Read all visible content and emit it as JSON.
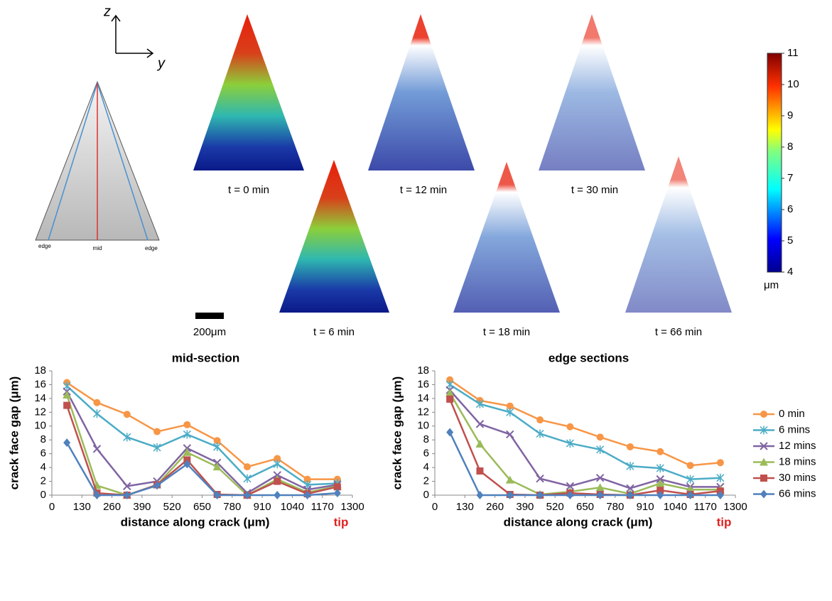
{
  "figure": {
    "axes": {
      "z": "z",
      "y": "y"
    },
    "diagram": {
      "edge_left": "edge",
      "mid": "mid",
      "edge_right": "edge"
    },
    "panels": [
      "t = 0 min",
      "t = 12 min",
      "t = 30 min",
      "t = 6 min",
      "t = 18 min",
      "t = 66 min"
    ],
    "scale_bar": "200μm",
    "colorbar": {
      "lim": [
        4,
        11
      ],
      "ticks": [
        4,
        5,
        6,
        7,
        8,
        9,
        10,
        11
      ],
      "unit": "μm"
    }
  },
  "chart_data": [
    {
      "type": "line",
      "title": "mid-section",
      "x_label": "distance along crack (μm)",
      "y_label": "crack face gap (μm)",
      "annotation": "tip",
      "x": [
        65,
        195,
        325,
        455,
        585,
        715,
        845,
        975,
        1105,
        1235
      ],
      "xlim": [
        0,
        1300
      ],
      "xticks": [
        0,
        130,
        260,
        390,
        520,
        650,
        780,
        910,
        1040,
        1170,
        1300
      ],
      "ylim": [
        0,
        18
      ],
      "yticks": [
        0,
        2,
        4,
        6,
        8,
        10,
        12,
        14,
        16,
        18
      ],
      "series": [
        {
          "name": "0 min",
          "color": "#f79646",
          "marker": "circle",
          "values": [
            16.3,
            13.4,
            11.7,
            9.2,
            10.2,
            7.9,
            4.1,
            5.3,
            2.3,
            2.3
          ]
        },
        {
          "name": "6 mins",
          "color": "#4bacc6",
          "marker": "star",
          "values": [
            15.8,
            11.8,
            8.4,
            6.9,
            8.8,
            7.0,
            2.4,
            4.5,
            1.5,
            1.7
          ]
        },
        {
          "name": "12 mins",
          "color": "#8064a2",
          "marker": "x",
          "values": [
            15.0,
            6.7,
            1.3,
            2.0,
            6.8,
            4.7,
            0.3,
            2.9,
            0.8,
            1.5
          ]
        },
        {
          "name": "18 mins",
          "color": "#9bbb59",
          "marker": "triangle",
          "values": [
            14.5,
            1.4,
            0,
            1.5,
            6.2,
            4.1,
            0,
            2.3,
            0.4,
            1.3
          ]
        },
        {
          "name": "30 mins",
          "color": "#c0504d",
          "marker": "square",
          "values": [
            13.0,
            0.3,
            0,
            1.5,
            5.1,
            0.1,
            0,
            2.0,
            0.2,
            1.2
          ]
        },
        {
          "name": "66 mins",
          "color": "#4f81bd",
          "marker": "diamond",
          "values": [
            7.6,
            0,
            0,
            1.4,
            4.5,
            0,
            0,
            0,
            0,
            0.3
          ]
        }
      ]
    },
    {
      "type": "line",
      "title": "edge sections",
      "x_label": "distance along crack (μm)",
      "y_label": "crack face gap (μm)",
      "annotation": "tip",
      "x": [
        65,
        195,
        325,
        455,
        585,
        715,
        845,
        975,
        1105,
        1235
      ],
      "xlim": [
        0,
        1300
      ],
      "xticks": [
        0,
        130,
        260,
        390,
        520,
        650,
        780,
        910,
        1040,
        1170,
        1300
      ],
      "ylim": [
        0,
        18
      ],
      "yticks": [
        0,
        2,
        4,
        6,
        8,
        10,
        12,
        14,
        16,
        18
      ],
      "legend": "right",
      "series": [
        {
          "name": "0 min",
          "color": "#f79646",
          "marker": "circle",
          "values": [
            16.7,
            13.7,
            12.9,
            10.9,
            9.9,
            8.4,
            7.0,
            6.3,
            4.3,
            4.7
          ]
        },
        {
          "name": "6 mins",
          "color": "#4bacc6",
          "marker": "star",
          "values": [
            16.0,
            13.2,
            12.0,
            8.9,
            7.5,
            6.6,
            4.2,
            3.9,
            2.3,
            2.5
          ]
        },
        {
          "name": "12 mins",
          "color": "#8064a2",
          "marker": "x",
          "values": [
            15.2,
            10.3,
            8.8,
            2.4,
            1.3,
            2.5,
            1.0,
            2.3,
            1.2,
            1.2
          ]
        },
        {
          "name": "18 mins",
          "color": "#9bbb59",
          "marker": "triangle",
          "values": [
            14.8,
            7.4,
            2.2,
            0.1,
            0.5,
            1.1,
            0.2,
            1.7,
            0.8,
            0.8
          ]
        },
        {
          "name": "30 mins",
          "color": "#c0504d",
          "marker": "square",
          "values": [
            13.9,
            3.5,
            0.1,
            0,
            0.3,
            0.1,
            0,
            0.7,
            0.1,
            0.6
          ]
        },
        {
          "name": "66 mins",
          "color": "#4f81bd",
          "marker": "diamond",
          "values": [
            9.1,
            0,
            0,
            0,
            0,
            0,
            0,
            0,
            0,
            0
          ]
        }
      ]
    }
  ]
}
